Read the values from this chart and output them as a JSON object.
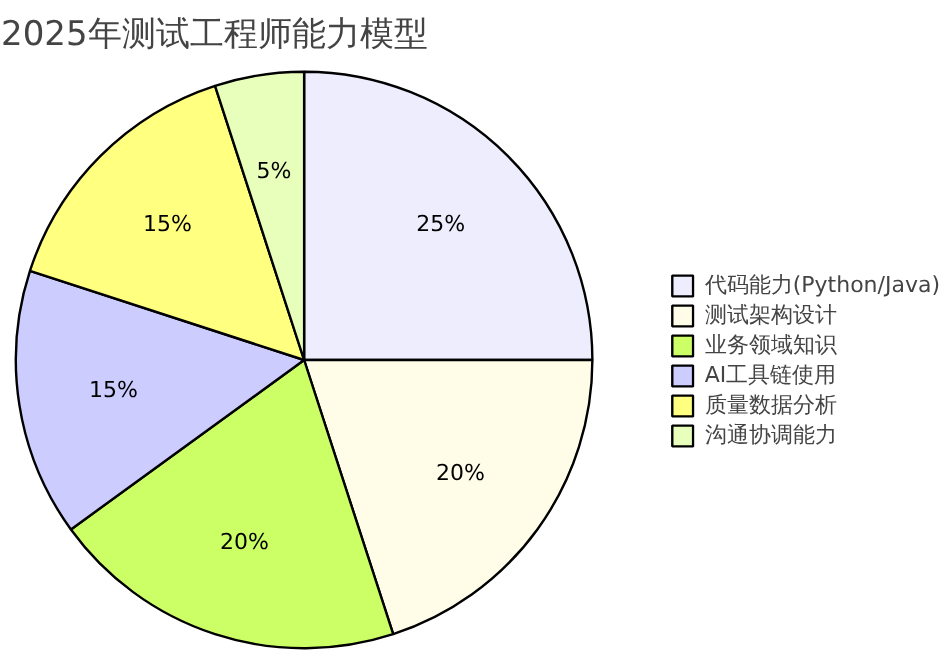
{
  "chart_data": {
    "type": "pie",
    "title": "2025年测试工程师能力模型",
    "categories": [
      "代码能力(Python/Java)",
      "测试架构设计",
      "业务领域知识",
      "AI工具链使用",
      "质量数据分析",
      "沟通协调能力"
    ],
    "values": [
      25,
      20,
      20,
      15,
      15,
      5
    ],
    "colors": [
      "#ededfd",
      "#fffde8",
      "#ccff66",
      "#ccccff",
      "#ffff80",
      "#e8ffbb"
    ],
    "value_labels": [
      "25%",
      "20%",
      "20%",
      "15%",
      "15%",
      "5%"
    ],
    "legend": "right"
  }
}
